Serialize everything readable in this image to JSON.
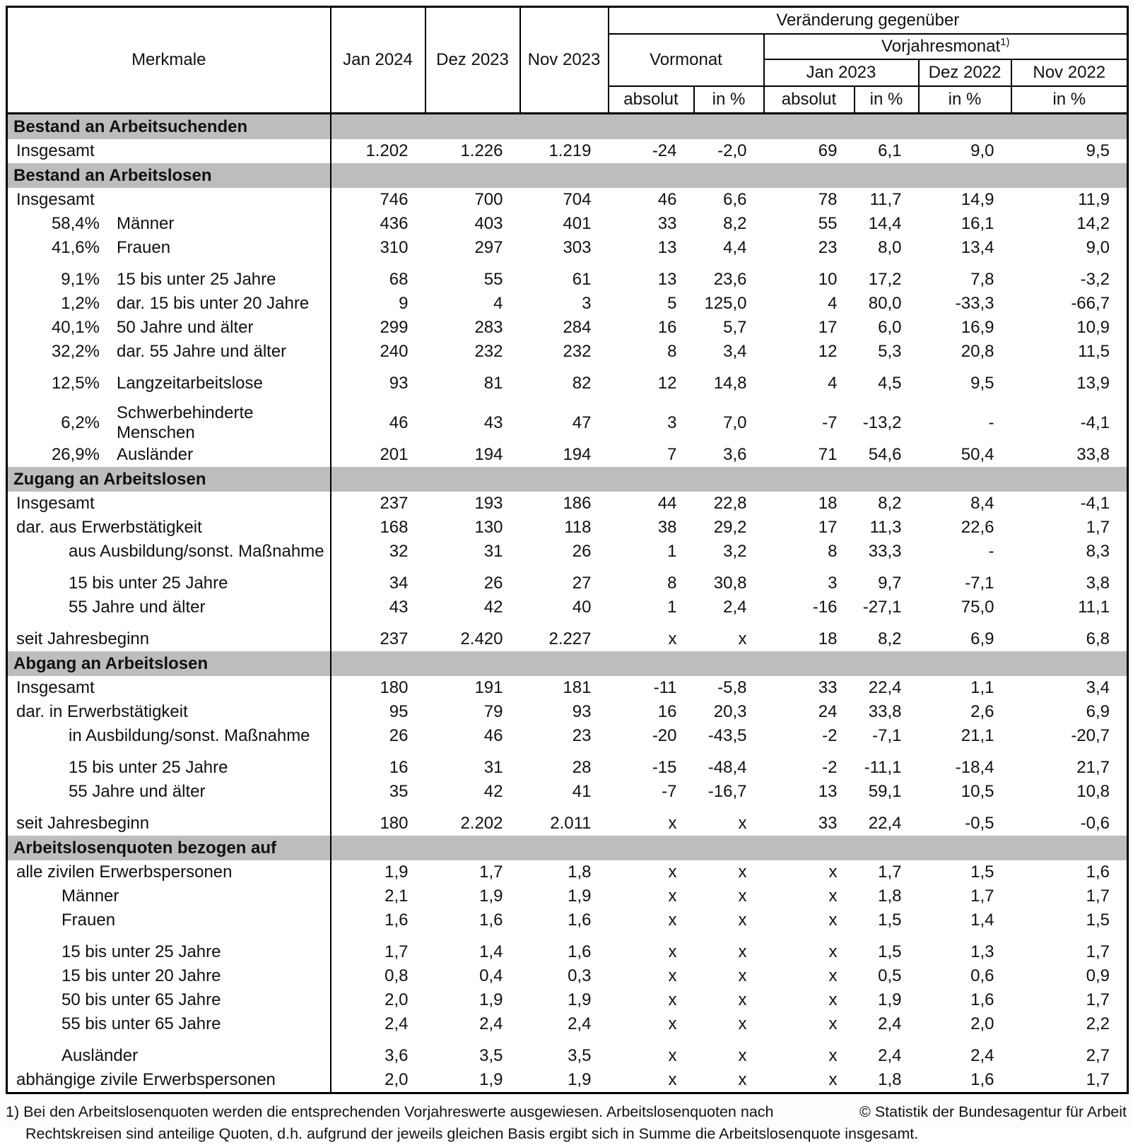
{
  "colors": {
    "section_band": "#bdbdbd",
    "border": "#000000",
    "text": "#111111"
  },
  "table": {
    "header": {
      "merkmale": "Merkmale",
      "months": [
        "Jan 2024",
        "Dez 2023",
        "Nov 2023"
      ],
      "change_title": "Veränderung gegenüber",
      "vormonat": "Vormonat",
      "vorjahresmonat_label": "Vorjahresmonat",
      "vorjahresmonat_sup": "1)",
      "prev_year_months": [
        "Jan 2023",
        "Dez 2022",
        "Nov 2022"
      ],
      "absolut": "absolut",
      "in_percent": "in %"
    },
    "sections": [
      {
        "title": "Bestand an Arbeitsuchenden",
        "rows": [
          {
            "pct": "",
            "label": "Insgesamt",
            "indent": 0,
            "gap": false,
            "values": [
              "1.202",
              "1.226",
              "1.219",
              "-24",
              "-2,0",
              "69",
              "6,1",
              "9,0",
              "9,5"
            ]
          }
        ]
      },
      {
        "title": "Bestand an Arbeitslosen",
        "rows": [
          {
            "pct": "",
            "label": "Insgesamt",
            "indent": 0,
            "gap": false,
            "values": [
              "746",
              "700",
              "704",
              "46",
              "6,6",
              "78",
              "11,7",
              "14,9",
              "11,9"
            ]
          },
          {
            "pct": "58,4%",
            "label": "Männer",
            "indent": 0,
            "gap": false,
            "values": [
              "436",
              "403",
              "401",
              "33",
              "8,2",
              "55",
              "14,4",
              "16,1",
              "14,2"
            ]
          },
          {
            "pct": "41,6%",
            "label": "Frauen",
            "indent": 0,
            "gap": false,
            "values": [
              "310",
              "297",
              "303",
              "13",
              "4,4",
              "23",
              "8,0",
              "13,4",
              "9,0"
            ]
          },
          {
            "pct": "9,1%",
            "label": "15 bis unter 25 Jahre",
            "indent": 0,
            "gap": true,
            "values": [
              "68",
              "55",
              "61",
              "13",
              "23,6",
              "10",
              "17,2",
              "7,8",
              "-3,2"
            ]
          },
          {
            "pct": "1,2%",
            "label": "dar. 15 bis unter 20 Jahre",
            "indent": 0,
            "gap": false,
            "values": [
              "9",
              "4",
              "3",
              "5",
              "125,0",
              "4",
              "80,0",
              "-33,3",
              "-66,7"
            ]
          },
          {
            "pct": "40,1%",
            "label": "50 Jahre und älter",
            "indent": 0,
            "gap": false,
            "values": [
              "299",
              "283",
              "284",
              "16",
              "5,7",
              "17",
              "6,0",
              "16,9",
              "10,9"
            ]
          },
          {
            "pct": "32,2%",
            "label": "dar. 55 Jahre und älter",
            "indent": 0,
            "gap": false,
            "values": [
              "240",
              "232",
              "232",
              "8",
              "3,4",
              "12",
              "5,3",
              "20,8",
              "11,5"
            ]
          },
          {
            "pct": "12,5%",
            "label": "Langzeitarbeitslose",
            "indent": 0,
            "gap": true,
            "values": [
              "93",
              "81",
              "82",
              "12",
              "14,8",
              "4",
              "4,5",
              "9,5",
              "13,9"
            ]
          },
          {
            "pct": "6,2%",
            "label": "Schwerbehinderte Menschen",
            "indent": 0,
            "gap": true,
            "values": [
              "46",
              "43",
              "47",
              "3",
              "7,0",
              "-7",
              "-13,2",
              "-",
              "-4,1"
            ]
          },
          {
            "pct": "26,9%",
            "label": "Ausländer",
            "indent": 0,
            "gap": false,
            "values": [
              "201",
              "194",
              "194",
              "7",
              "3,6",
              "71",
              "54,6",
              "50,4",
              "33,8"
            ]
          }
        ]
      },
      {
        "title": "Zugang an Arbeitslosen",
        "rows": [
          {
            "pct": "",
            "label": "Insgesamt",
            "indent": 0,
            "gap": false,
            "values": [
              "237",
              "193",
              "186",
              "44",
              "22,8",
              "18",
              "8,2",
              "8,4",
              "-4,1"
            ]
          },
          {
            "pct": "",
            "label": "dar. aus Erwerbstätigkeit",
            "indent": 0,
            "gap": false,
            "values": [
              "168",
              "130",
              "118",
              "38",
              "29,2",
              "17",
              "11,3",
              "22,6",
              "1,7"
            ]
          },
          {
            "pct": "",
            "label": "aus Ausbildung/sonst. Maßnahme",
            "indent": 1,
            "gap": false,
            "values": [
              "32",
              "31",
              "26",
              "1",
              "3,2",
              "8",
              "33,3",
              "-",
              "8,3"
            ]
          },
          {
            "pct": "",
            "label": "15 bis unter 25 Jahre",
            "indent": 1,
            "gap": true,
            "values": [
              "34",
              "26",
              "27",
              "8",
              "30,8",
              "3",
              "9,7",
              "-7,1",
              "3,8"
            ]
          },
          {
            "pct": "",
            "label": "55 Jahre und älter",
            "indent": 1,
            "gap": false,
            "values": [
              "43",
              "42",
              "40",
              "1",
              "2,4",
              "-16",
              "-27,1",
              "75,0",
              "11,1"
            ]
          },
          {
            "pct": "",
            "label": "seit Jahresbeginn",
            "indent": 0,
            "gap": true,
            "values": [
              "237",
              "2.420",
              "2.227",
              "x",
              "x",
              "18",
              "8,2",
              "6,9",
              "6,8"
            ]
          }
        ]
      },
      {
        "title": "Abgang an Arbeitslosen",
        "rows": [
          {
            "pct": "",
            "label": "Insgesamt",
            "indent": 0,
            "gap": false,
            "values": [
              "180",
              "191",
              "181",
              "-11",
              "-5,8",
              "33",
              "22,4",
              "1,1",
              "3,4"
            ]
          },
          {
            "pct": "",
            "label": "dar. in Erwerbstätigkeit",
            "indent": 0,
            "gap": false,
            "values": [
              "95",
              "79",
              "93",
              "16",
              "20,3",
              "24",
              "33,8",
              "2,6",
              "6,9"
            ]
          },
          {
            "pct": "",
            "label": "in Ausbildung/sonst. Maßnahme",
            "indent": 1,
            "gap": false,
            "values": [
              "26",
              "46",
              "23",
              "-20",
              "-43,5",
              "-2",
              "-7,1",
              "21,1",
              "-20,7"
            ]
          },
          {
            "pct": "",
            "label": "15 bis unter 25 Jahre",
            "indent": 1,
            "gap": true,
            "values": [
              "16",
              "31",
              "28",
              "-15",
              "-48,4",
              "-2",
              "-11,1",
              "-18,4",
              "21,7"
            ]
          },
          {
            "pct": "",
            "label": "55 Jahre und älter",
            "indent": 1,
            "gap": false,
            "values": [
              "35",
              "42",
              "41",
              "-7",
              "-16,7",
              "13",
              "59,1",
              "10,5",
              "10,8"
            ]
          },
          {
            "pct": "",
            "label": "seit Jahresbeginn",
            "indent": 0,
            "gap": true,
            "values": [
              "180",
              "2.202",
              "2.011",
              "x",
              "x",
              "33",
              "22,4",
              "-0,5",
              "-0,6"
            ]
          }
        ]
      },
      {
        "title": "Arbeitslosenquoten bezogen auf",
        "rows": [
          {
            "pct": "",
            "label": "alle zivilen Erwerbspersonen",
            "indent": 0,
            "gap": false,
            "values": [
              "1,9",
              "1,7",
              "1,8",
              "x",
              "x",
              "x",
              "1,7",
              "1,5",
              "1,6"
            ]
          },
          {
            "pct": "",
            "label": "Männer",
            "indent": 2,
            "gap": false,
            "values": [
              "2,1",
              "1,9",
              "1,9",
              "x",
              "x",
              "x",
              "1,8",
              "1,7",
              "1,7"
            ]
          },
          {
            "pct": "",
            "label": "Frauen",
            "indent": 2,
            "gap": false,
            "values": [
              "1,6",
              "1,6",
              "1,6",
              "x",
              "x",
              "x",
              "1,5",
              "1,4",
              "1,5"
            ]
          },
          {
            "pct": "",
            "label": "15 bis unter 25 Jahre",
            "indent": 2,
            "gap": true,
            "values": [
              "1,7",
              "1,4",
              "1,6",
              "x",
              "x",
              "x",
              "1,5",
              "1,3",
              "1,7"
            ]
          },
          {
            "pct": "",
            "label": "15 bis unter 20 Jahre",
            "indent": 2,
            "gap": false,
            "values": [
              "0,8",
              "0,4",
              "0,3",
              "x",
              "x",
              "x",
              "0,5",
              "0,6",
              "0,9"
            ]
          },
          {
            "pct": "",
            "label": "50 bis unter 65 Jahre",
            "indent": 2,
            "gap": false,
            "values": [
              "2,0",
              "1,9",
              "1,9",
              "x",
              "x",
              "x",
              "1,9",
              "1,6",
              "1,7"
            ]
          },
          {
            "pct": "",
            "label": "55 bis unter 65 Jahre",
            "indent": 2,
            "gap": false,
            "values": [
              "2,4",
              "2,4",
              "2,4",
              "x",
              "x",
              "x",
              "2,4",
              "2,0",
              "2,2"
            ]
          },
          {
            "pct": "",
            "label": "Ausländer",
            "indent": 2,
            "gap": true,
            "values": [
              "3,6",
              "3,5",
              "3,5",
              "x",
              "x",
              "x",
              "2,4",
              "2,4",
              "2,7"
            ]
          },
          {
            "pct": "",
            "label": "abhängige zivile Erwerbspersonen",
            "indent": 0,
            "gap": false,
            "values": [
              "2,0",
              "1,9",
              "1,9",
              "x",
              "x",
              "x",
              "1,8",
              "1,6",
              "1,7"
            ]
          }
        ]
      }
    ]
  },
  "footer": {
    "note_line1": "1) Bei den Arbeitslosenquoten werden die entsprechenden Vorjahreswerte ausgewiesen. Arbeitslosenquoten nach",
    "note_line2": "Rechtskreisen sind anteilige Quoten, d.h. aufgrund der jeweils gleichen Basis ergibt sich in Summe die Arbeitslosenquote insgesamt.",
    "copyright": "© Statistik der Bundesagentur für Arbeit"
  }
}
